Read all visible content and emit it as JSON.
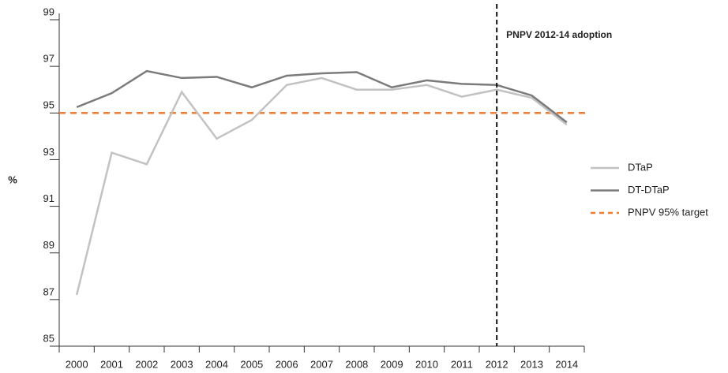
{
  "chart_data": {
    "type": "line",
    "categories": [
      "2000",
      "2001",
      "2002",
      "2003",
      "2004",
      "2005",
      "2006",
      "2007",
      "2008",
      "2009",
      "2010",
      "2011",
      "2012",
      "2013",
      "2014"
    ],
    "series": [
      {
        "name": "DTaP",
        "color": "#c2c2c2",
        "values": [
          87.2,
          93.3,
          92.8,
          95.9,
          93.9,
          94.7,
          96.2,
          96.5,
          96.0,
          96.0,
          96.2,
          95.7,
          96.0,
          95.65,
          94.5
        ]
      },
      {
        "name": "DT-DTaP",
        "color": "#7b7b7b",
        "values": [
          95.25,
          95.85,
          96.8,
          96.5,
          96.55,
          96.1,
          96.6,
          96.7,
          96.75,
          96.1,
          96.4,
          96.25,
          96.2,
          95.75,
          94.6
        ]
      }
    ],
    "target": {
      "name": "PNPV 95% target",
      "value": 95,
      "color": "#f07d32"
    },
    "annotation": {
      "text": "PNPV 2012-14 adoption",
      "category": "2012"
    },
    "ylabel": "%",
    "ylim": [
      85,
      99
    ],
    "yticks": [
      85,
      87,
      89,
      91,
      93,
      95,
      97,
      99
    ],
    "legend": "right"
  }
}
